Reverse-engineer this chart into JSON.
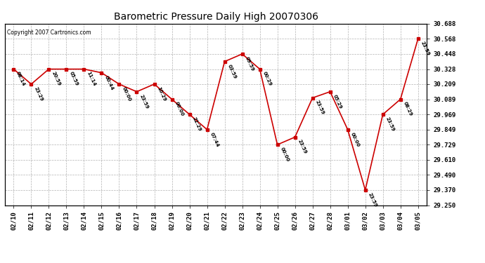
{
  "title": "Barometric Pressure Daily High 20070306",
  "copyright": "Copyright 2007 Cartronics.com",
  "background_color": "#ffffff",
  "line_color": "#cc0000",
  "marker_color": "#cc0000",
  "grid_color": "#aaaaaa",
  "ylim": [
    29.25,
    30.688
  ],
  "yticks": [
    29.25,
    29.37,
    29.49,
    29.61,
    29.729,
    29.849,
    29.969,
    30.089,
    30.209,
    30.328,
    30.448,
    30.568,
    30.688
  ],
  "dates": [
    "02/10",
    "02/11",
    "02/12",
    "02/13",
    "02/14",
    "02/15",
    "02/16",
    "02/17",
    "02/18",
    "02/19",
    "02/20",
    "02/21",
    "02/22",
    "02/23",
    "02/24",
    "02/25",
    "02/26",
    "02/27",
    "02/28",
    "03/01",
    "03/02",
    "03/03",
    "03/04",
    "03/05"
  ],
  "values": [
    30.328,
    30.209,
    30.328,
    30.328,
    30.328,
    30.299,
    30.209,
    30.149,
    30.209,
    30.089,
    29.969,
    29.849,
    30.388,
    30.448,
    30.328,
    29.729,
    29.789,
    30.1,
    30.149,
    29.849,
    29.37,
    29.969,
    30.089,
    30.568
  ],
  "annotations": [
    "08:14",
    "23:29",
    "20:59",
    "05:59",
    "11:14",
    "00:44",
    "00:00",
    "23:59",
    "10:29",
    "00:00",
    "22:29",
    "07:44",
    "03:59",
    "09:59",
    "00:29",
    "00:00",
    "23:59",
    "23:59",
    "05:29",
    "00:00",
    "23:59",
    "23:59",
    "08:29",
    "23:59"
  ]
}
